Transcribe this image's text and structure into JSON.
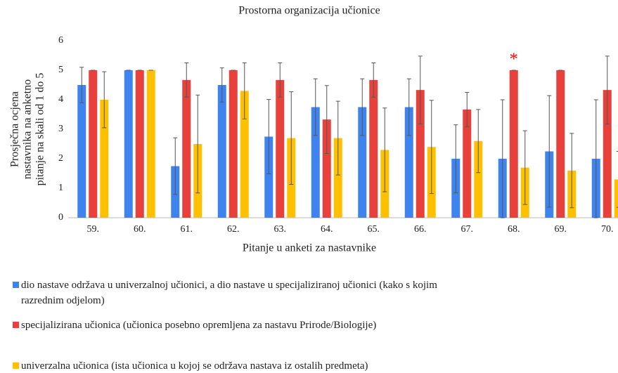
{
  "chart_data": {
    "type": "bar",
    "title": "Prostorna organizacija učionice",
    "ylabel": [
      "Prosječna ocjena",
      "nastavnika na anketno",
      "pitanje na skali od 1 do 5"
    ],
    "xlabel": "Pitanje u anketi za nastavnike",
    "categories": [
      "59.",
      "60.",
      "61.",
      "62.",
      "63.",
      "64.",
      "65.",
      "66.",
      "67.",
      "68.",
      "69.",
      "70."
    ],
    "series": [
      {
        "name": "dio nastave održava u univerzalnoj učionici, a dio nastave u specijaliziranoj učionici (kako s kojim razrednim odjelom)",
        "color": "#3f83ee",
        "values": [
          4.5,
          5,
          1.75,
          4.5,
          2.75,
          3.75,
          3.75,
          3.75,
          2,
          2,
          2.25,
          2
        ],
        "errors": [
          0.6,
          0,
          0.96,
          0.58,
          1.26,
          0.96,
          0.96,
          0.96,
          1.15,
          2,
          1.89,
          2
        ]
      },
      {
        "name": "specijalizirana učionica (učionica posebno opremljena za nastavu Prirode/Biologije)",
        "color": "#e8413b",
        "values": [
          5,
          5,
          4.67,
          5,
          4.67,
          3.33,
          4.67,
          4.33,
          3.67,
          5,
          5,
          4.33
        ],
        "errors": [
          0,
          0,
          0.58,
          0,
          0.58,
          1.15,
          0.58,
          1.15,
          0.58,
          0,
          0,
          1.15
        ]
      },
      {
        "name": "univerzalna učionica (ista učionica u kojoj se održava nastava iz ostalih predmeta)",
        "color": "#ffc000",
        "values": [
          4,
          5,
          2.5,
          4.3,
          2.7,
          2.7,
          2.3,
          2.4,
          2.6,
          1.7,
          1.6,
          1.3
        ],
        "errors": [
          0.95,
          0,
          1.66,
          0.95,
          1.57,
          1.25,
          1.42,
          1.58,
          1.07,
          1.25,
          1.26,
          0.95
        ]
      }
    ],
    "annotations": [
      {
        "text": "*",
        "category": "68.",
        "series": 1,
        "color": "#ff0000"
      }
    ],
    "ylim": [
      0,
      6
    ],
    "yticks": [
      0,
      1,
      2,
      3,
      4,
      5,
      6
    ],
    "grid": false,
    "legend": "bottom"
  }
}
